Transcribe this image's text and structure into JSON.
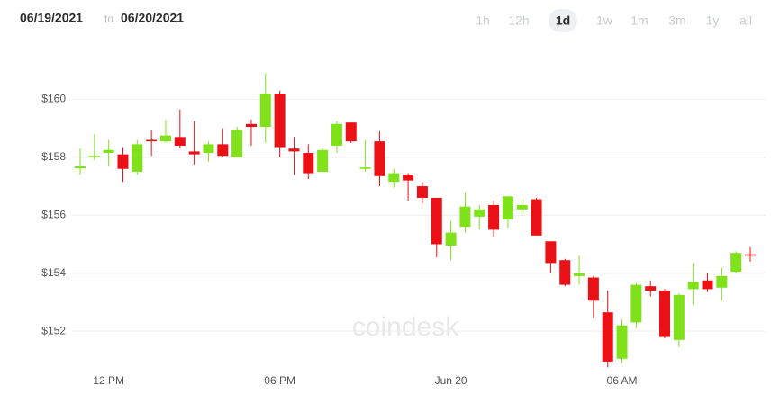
{
  "header": {
    "from": "06/19/2021",
    "to_word": "to",
    "to": "06/20/2021",
    "ranges": [
      "1h",
      "12h",
      "1d",
      "1w",
      "1m",
      "3m",
      "1y",
      "all"
    ],
    "selected_range": "1d"
  },
  "chart_data": {
    "type": "candlestick",
    "watermark": "coindesk",
    "categories": [
      null,
      null,
      "12 PM",
      null,
      null,
      null,
      null,
      null,
      null,
      null,
      null,
      null,
      null,
      null,
      "06 PM",
      null,
      null,
      null,
      null,
      null,
      null,
      null,
      null,
      null,
      null,
      null,
      "Jun 20",
      null,
      null,
      null,
      null,
      null,
      null,
      null,
      null,
      null,
      null,
      null,
      "06 AM",
      null,
      null,
      null,
      null,
      null,
      null,
      null,
      null,
      null
    ],
    "open": [
      157.62,
      158.0,
      158.15,
      158.1,
      157.5,
      158.6,
      158.55,
      158.7,
      158.2,
      158.15,
      158.45,
      158.0,
      159.15,
      159.05,
      160.2,
      158.3,
      158.15,
      157.5,
      158.4,
      159.2,
      157.6,
      158.55,
      157.15,
      157.4,
      157.0,
      156.6,
      154.95,
      155.6,
      155.95,
      156.35,
      155.85,
      156.2,
      156.55,
      155.1,
      154.45,
      153.9,
      153.85,
      152.65,
      151.05,
      152.3,
      153.55,
      153.4,
      151.7,
      153.45,
      153.75,
      153.5,
      154.05,
      154.65
    ],
    "high": [
      158.3,
      158.8,
      158.6,
      158.35,
      158.6,
      158.95,
      159.3,
      159.65,
      159.25,
      158.55,
      159.0,
      159.05,
      159.3,
      160.9,
      160.3,
      158.7,
      158.45,
      158.3,
      159.25,
      159.2,
      158.6,
      158.9,
      157.6,
      157.45,
      157.15,
      156.6,
      155.8,
      156.8,
      156.35,
      156.5,
      156.65,
      156.55,
      156.6,
      155.1,
      154.5,
      154.6,
      153.9,
      153.4,
      152.4,
      153.65,
      153.75,
      153.45,
      153.3,
      154.35,
      154.0,
      154.2,
      154.75,
      154.9
    ],
    "low": [
      157.4,
      157.9,
      157.7,
      157.15,
      157.4,
      158.05,
      158.5,
      158.3,
      157.75,
      157.85,
      158.0,
      158.0,
      158.4,
      158.5,
      158.0,
      157.4,
      157.25,
      157.5,
      158.15,
      158.5,
      157.5,
      157.0,
      156.95,
      156.5,
      156.4,
      154.55,
      154.45,
      155.4,
      155.5,
      155.25,
      155.55,
      156.05,
      155.3,
      154.0,
      153.55,
      153.6,
      152.45,
      150.75,
      150.9,
      152.1,
      153.2,
      151.75,
      151.45,
      152.9,
      153.35,
      153.05,
      154.0,
      154.4
    ],
    "close": [
      157.7,
      158.05,
      158.25,
      157.6,
      158.45,
      158.55,
      158.75,
      158.4,
      158.1,
      158.45,
      158.05,
      158.95,
      159.05,
      160.2,
      158.35,
      158.2,
      157.45,
      158.25,
      159.15,
      158.55,
      157.65,
      157.35,
      157.45,
      157.2,
      156.6,
      155.0,
      155.4,
      156.3,
      156.2,
      155.5,
      156.65,
      156.35,
      155.3,
      154.35,
      153.6,
      154.0,
      153.05,
      150.95,
      152.2,
      153.6,
      153.4,
      151.8,
      153.25,
      153.7,
      153.45,
      153.9,
      154.7,
      154.62
    ],
    "up_color": "#80e21b",
    "down_color": "#ea1016",
    "ylim": [
      150.7,
      162
    ],
    "yticks": [
      {
        "value": 152,
        "label": "$152"
      },
      {
        "value": 154,
        "label": "$154"
      },
      {
        "value": 156,
        "label": "$156"
      },
      {
        "value": 158,
        "label": "$158"
      },
      {
        "value": 160,
        "label": "$160"
      }
    ],
    "grid": true
  }
}
